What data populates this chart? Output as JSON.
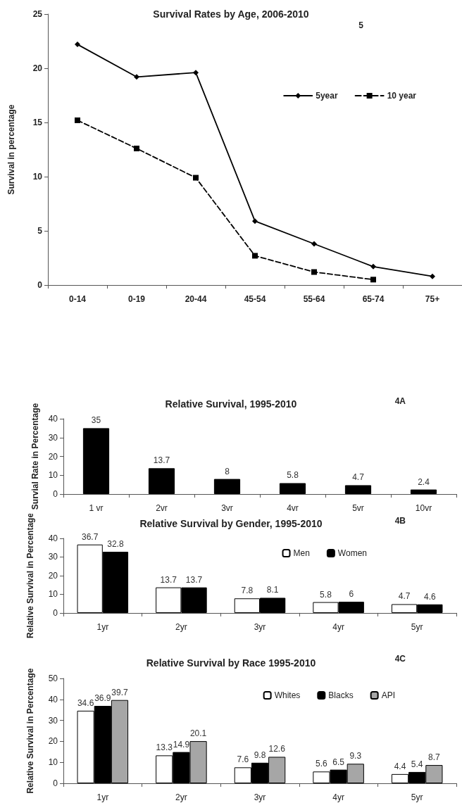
{
  "chart_data": [
    {
      "type": "line",
      "title": "Survival Rates by Age, 2006-2010",
      "ylabel": "Survival in percentage",
      "annotations": [
        "5"
      ],
      "categories": [
        "0-14",
        "0-19",
        "20-44",
        "45-54",
        "55-64",
        "65-74",
        "75+"
      ],
      "series": [
        {
          "name": "5year",
          "color": "#000000",
          "marker": "diamond",
          "line_style": "solid",
          "values": [
            22.2,
            19.2,
            19.6,
            5.9,
            3.8,
            1.7,
            0.8
          ]
        },
        {
          "name": "10 year",
          "color": "#000000",
          "marker": "square",
          "line_style": "dashed",
          "values": [
            15.2,
            12.6,
            9.9,
            2.7,
            1.2,
            0.5,
            null
          ]
        }
      ],
      "ylim": [
        0,
        25
      ],
      "yticks": [
        0,
        5,
        10,
        15,
        20,
        25
      ],
      "grid": false,
      "legend": "top right"
    },
    {
      "type": "bar",
      "title": "Relative Survival, 1995-2010",
      "ylabel": "Survial Rate in Percentage",
      "annotations": [
        "4A"
      ],
      "categories": [
        "1 vr",
        "2vr",
        "3vr",
        "4vr",
        "5vr",
        "10vr"
      ],
      "values": [
        35,
        13.7,
        8,
        5.8,
        4.7,
        2.4
      ],
      "color": "#000000",
      "ylim": [
        0,
        40
      ],
      "yticks": [
        0,
        10,
        20,
        30,
        40
      ],
      "grid": false,
      "legend": false,
      "data_labels": true
    },
    {
      "type": "bar",
      "title": "Relative Survival by Gender, 1995-2010",
      "ylabel": "Relative Survival in Percentage",
      "annotations": [
        "4B"
      ],
      "categories": [
        "1yr",
        "2yr",
        "3yr",
        "4yr",
        "5yr"
      ],
      "series": [
        {
          "name": "Men",
          "color": "#ffffff",
          "values": [
            36.7,
            13.7,
            7.8,
            5.8,
            4.7
          ]
        },
        {
          "name": "Women",
          "color": "#000000",
          "values": [
            32.8,
            13.7,
            8.1,
            6,
            4.6
          ]
        }
      ],
      "ylim": [
        0,
        40
      ],
      "yticks": [
        0,
        10,
        20,
        30,
        40
      ],
      "grid": false,
      "legend": "top right",
      "data_labels": true
    },
    {
      "type": "bar",
      "title": "Relative Survival by Race 1995-2010",
      "ylabel": "Relative Survival in Percentage",
      "annotations": [
        "4C"
      ],
      "categories": [
        "1yr",
        "2yr",
        "3yr",
        "4yr",
        "5yr"
      ],
      "series": [
        {
          "name": "Whites",
          "color": "#ffffff",
          "values": [
            34.6,
            13.3,
            7.6,
            5.6,
            4.4
          ]
        },
        {
          "name": "Blacks",
          "color": "#000000",
          "values": [
            36.9,
            14.9,
            9.8,
            6.5,
            5.4
          ]
        },
        {
          "name": "API",
          "color": "#a6a6a6",
          "values": [
            39.7,
            20.1,
            12.6,
            9.3,
            8.7
          ]
        }
      ],
      "ylim": [
        0,
        50
      ],
      "yticks": [
        0,
        10,
        20,
        30,
        40,
        50
      ],
      "grid": false,
      "legend": "top right",
      "data_labels": true
    }
  ]
}
